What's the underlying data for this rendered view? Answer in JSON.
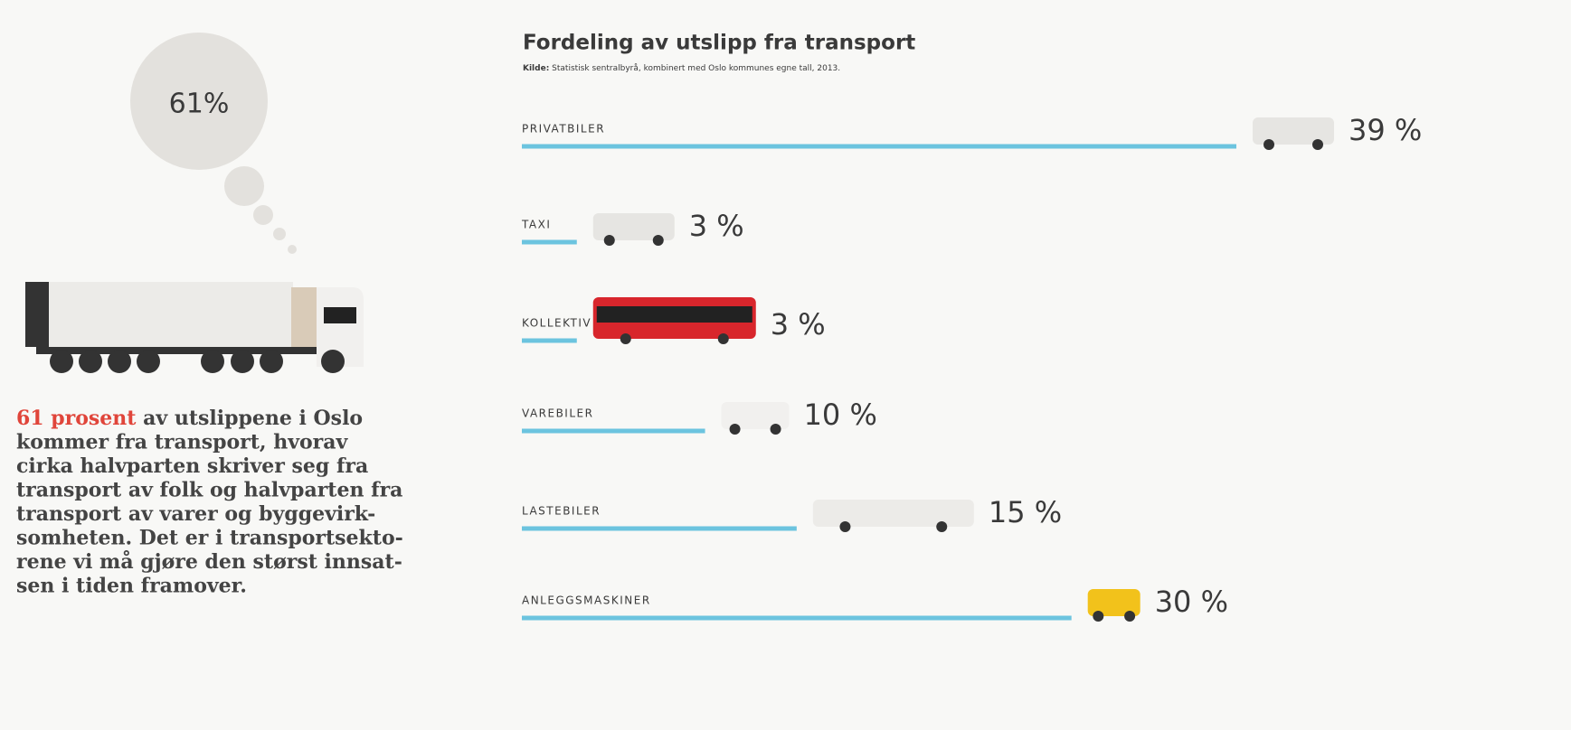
{
  "bubble": "61%",
  "text": {
    "highlight": "61 prosent",
    "lines": [
      " av utslippene i Oslo",
      "kommer fra transport, hvorav",
      "cirka halvparten skriver seg fra",
      "transport av folk og halvparten fra",
      "transport av varer og byggevirk-",
      "somheten. Det er i transportsekto-",
      "rene vi må gjøre den størst innsat-",
      "sen i tiden framover."
    ]
  },
  "chart_data": {
    "type": "bar",
    "orientation": "horizontal",
    "title": "Fordeling av utslipp fra transport",
    "source_label": "Kilde:",
    "source": "Statistisk sentralbyrå, kombinert med Oslo kommunes egne tall, 2013.",
    "categories": [
      "PRIVATBILER",
      "TAXI",
      "KOLLEKTIV",
      "VAREBILER",
      "LASTEBILER",
      "ANLEGGSMASKINER"
    ],
    "values": [
      39,
      3,
      3,
      10,
      15,
      30
    ],
    "value_labels": [
      "39 %",
      "3 %",
      "3 %",
      "10 %",
      "15 %",
      "30 %"
    ],
    "color": "#6cc4df"
  }
}
